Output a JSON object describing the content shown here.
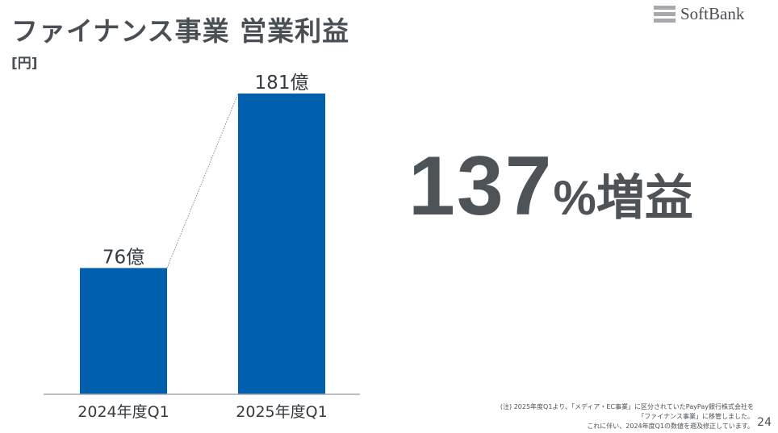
{
  "header": {
    "title": "ファイナンス事業 営業利益",
    "unit_label": "[円]",
    "logo_text": "SoftBank"
  },
  "highlight": {
    "number": "137",
    "suffix": "%増益"
  },
  "chart_data": {
    "type": "bar",
    "categories": [
      "2024年度Q1",
      "2025年度Q1"
    ],
    "values": [
      76,
      181
    ],
    "value_labels": [
      "76億",
      "181億"
    ],
    "ylim": [
      0,
      181
    ],
    "bar_color": "#0060ad",
    "connector_line": true
  },
  "footnote": {
    "lines": [
      "(注) 2025年度Q1より、「メディア・EC事業」に区分されていたPayPay銀行株式会社を",
      "「ファイナンス事業」に移管しました。",
      "これに伴い、2024年度Q1の数値を遡及修正しています。"
    ]
  },
  "page_number": "24",
  "colors": {
    "text": "#4a4f55",
    "bar": "#0060ad",
    "axis": "#a6a8ab"
  }
}
